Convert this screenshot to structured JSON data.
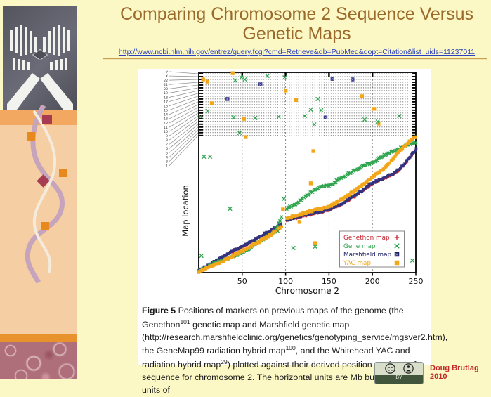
{
  "slide": {
    "title": "Comparing Chromosome 2 Sequence Versus Genetic Maps",
    "link": "http://www.ncbi.nlm.nih.gov/entrez/query.fcgi?cmd=Retrieve&db=PubMed&dopt=Citation&list_uids=11237011",
    "credit": "Doug Brutlag 2010",
    "cc_badge_label": "BY"
  },
  "caption": {
    "segments": [
      {
        "b": "Figure 5"
      },
      {
        "t": " Positions of markers on previous maps of the genome (the Genethon"
      },
      {
        "sup": "101"
      },
      {
        "t": " genetic map and Marshfield genetic map (http://research.marshfieldclinic.org/genetics/genotyping_service/mgsver2.htm), the GeneMap99 radiation hybrid map"
      },
      {
        "sup": "100"
      },
      {
        "t": ", and the Whitehead YAC and radiation hybrid map"
      },
      {
        "sup": "29"
      },
      {
        "t": ") plotted against their derived position on the draft sequence for chromosome 2. The horizontal units are Mb but the vertical units of"
      }
    ]
  },
  "chart_data": {
    "type": "scatter",
    "title": "",
    "xlabel": "Chromosome 2",
    "ylabel": "Map location",
    "xlim": [
      0,
      250
    ],
    "x_ticks": [
      50,
      100,
      150,
      200,
      250
    ],
    "x_gridlines": [
      50,
      100,
      150,
      200
    ],
    "grid": "vertical-dashed",
    "band": {
      "frac_bottom": 0.685,
      "labels": [
        "Y",
        "X",
        "22",
        "21",
        "20",
        "19",
        "18",
        "17",
        "16",
        "15",
        "14",
        "13",
        "12",
        "11",
        "10",
        "9",
        "8",
        "7",
        "6",
        "5",
        "4",
        "3",
        "1"
      ]
    },
    "legend": {
      "position": "bottom-right",
      "entries": [
        {
          "name": "Genethon map",
          "marker": "plus",
          "color": "#C42430"
        },
        {
          "name": "Gene map",
          "marker": "x",
          "color": "#2FA44F"
        },
        {
          "name": "Marshfield map",
          "marker": "square",
          "color": "#1F2366"
        },
        {
          "name": "YAC map",
          "marker": "square",
          "color": "#F0A818"
        }
      ]
    },
    "y_units_note": "no numeric y ticks shown; y given as fraction of axis height",
    "series": [
      {
        "name": "Genethon map",
        "marker": "plus",
        "color": "#C42430",
        "size": 3.2,
        "path": [
          [
            0,
            0.007
          ],
          [
            15,
            0.041
          ],
          [
            30,
            0.081
          ],
          [
            50,
            0.127
          ],
          [
            70,
            0.175
          ],
          [
            85,
            0.21
          ],
          [
            95,
            0.239
          ],
          [
            101,
            0.257
          ],
          [
            115,
            0.275
          ],
          [
            130,
            0.291
          ],
          [
            150,
            0.31
          ],
          [
            165,
            0.34
          ],
          [
            180,
            0.38
          ],
          [
            200,
            0.444
          ],
          [
            210,
            0.463
          ],
          [
            222,
            0.485
          ],
          [
            232,
            0.515
          ],
          [
            242,
            0.565
          ],
          [
            250,
            0.613
          ]
        ]
      },
      {
        "name": "Marshfield map",
        "marker": "square",
        "color": "#32327E",
        "size": 3.8,
        "path": [
          [
            0,
            0.012
          ],
          [
            15,
            0.046
          ],
          [
            30,
            0.086
          ],
          [
            50,
            0.132
          ],
          [
            70,
            0.18
          ],
          [
            85,
            0.215
          ],
          [
            95,
            0.244
          ],
          [
            101,
            0.262
          ],
          [
            115,
            0.28
          ],
          [
            130,
            0.296
          ],
          [
            150,
            0.315
          ],
          [
            165,
            0.345
          ],
          [
            180,
            0.385
          ],
          [
            200,
            0.449
          ],
          [
            210,
            0.468
          ],
          [
            222,
            0.49
          ],
          [
            232,
            0.52
          ],
          [
            242,
            0.57
          ],
          [
            250,
            0.618
          ]
        ]
      },
      {
        "name": "Gene map",
        "marker": "x",
        "color": "#2FA44F",
        "size": 4.2,
        "path": [
          [
            0,
            0.008
          ],
          [
            10,
            0.03
          ],
          [
            25,
            0.058
          ],
          [
            40,
            0.082
          ],
          [
            50,
            0.1
          ],
          [
            65,
            0.14
          ],
          [
            80,
            0.185
          ],
          [
            90,
            0.22
          ],
          [
            94,
            0.26
          ],
          [
            96,
            0.295
          ],
          [
            101,
            0.32
          ],
          [
            110,
            0.338
          ],
          [
            120,
            0.372
          ],
          [
            130,
            0.402
          ],
          [
            140,
            0.43
          ],
          [
            152,
            0.435
          ],
          [
            160,
            0.462
          ],
          [
            175,
            0.5
          ],
          [
            190,
            0.537
          ],
          [
            200,
            0.549
          ],
          [
            212,
            0.584
          ],
          [
            225,
            0.607
          ],
          [
            240,
            0.637
          ],
          [
            250,
            0.65
          ]
        ]
      },
      {
        "name": "YAC map",
        "marker": "square",
        "color": "#F2A71B",
        "size": 4.4,
        "path": [
          [
            0,
            0.005
          ],
          [
            15,
            0.032
          ],
          [
            30,
            0.062
          ],
          [
            50,
            0.108
          ],
          [
            70,
            0.155
          ],
          [
            85,
            0.195
          ],
          [
            95,
            0.228
          ],
          [
            101,
            0.268
          ],
          [
            115,
            0.29
          ],
          [
            130,
            0.308
          ],
          [
            150,
            0.33
          ],
          [
            165,
            0.365
          ],
          [
            180,
            0.41
          ],
          [
            200,
            0.478
          ],
          [
            210,
            0.51
          ],
          [
            220,
            0.55
          ],
          [
            230,
            0.6
          ],
          [
            240,
            0.645
          ],
          [
            250,
            0.68
          ]
        ]
      }
    ],
    "outliers": [
      {
        "series": "YAC map",
        "marker": "square",
        "color": "#F2A71B",
        "points": [
          [
            5,
            0.965
          ],
          [
            10,
            0.954
          ],
          [
            39,
            0.996
          ],
          [
            100,
            0.909
          ],
          [
            15,
            0.846
          ],
          [
            52,
            0.768
          ],
          [
            54,
            0.677
          ],
          [
            112,
            0.862
          ],
          [
            188,
            0.881
          ],
          [
            202,
            0.818
          ],
          [
            207,
            0.744
          ],
          [
            132,
            0.607
          ],
          [
            129,
            0.446
          ],
          [
            97,
            0.316
          ],
          [
            116,
            0.253
          ],
          [
            134,
            0.147
          ]
        ]
      },
      {
        "series": "Gene map",
        "marker": "x",
        "color": "#2FA44F",
        "points": [
          [
            42,
            0.961
          ],
          [
            49,
            0.975
          ],
          [
            53,
            0.965
          ],
          [
            79,
            0.982
          ],
          [
            99,
            0.975
          ],
          [
            2,
            0.779
          ],
          [
            10,
            0.807
          ],
          [
            40,
            0.775
          ],
          [
            65,
            0.772
          ],
          [
            47,
            0.698
          ],
          [
            92,
            0.779
          ],
          [
            122,
            0.782
          ],
          [
            129,
            0.814
          ],
          [
            133,
            0.74
          ],
          [
            137,
            0.867
          ],
          [
            141,
            0.811
          ],
          [
            191,
            0.765
          ],
          [
            206,
            0.754
          ],
          [
            231,
            0.782
          ],
          [
            6,
            0.579
          ],
          [
            13,
            0.579
          ],
          [
            36,
            0.319
          ],
          [
            98,
            0.368
          ],
          [
            91,
            0.207
          ],
          [
            109,
            0.123
          ],
          [
            134,
            0.13
          ],
          [
            3,
            0.084
          ],
          [
            246,
            0.06
          ]
        ]
      },
      {
        "series": "Marshfield map",
        "marker": "square-x",
        "color": "#32327E",
        "points": [
          [
            71,
            0.94
          ],
          [
            33,
            0.867
          ],
          [
            154,
            0.968
          ],
          [
            177,
            0.965
          ],
          [
            146,
            0.775
          ]
        ]
      }
    ],
    "centromere_gap_mb": [
      95.5,
      100.5
    ]
  }
}
